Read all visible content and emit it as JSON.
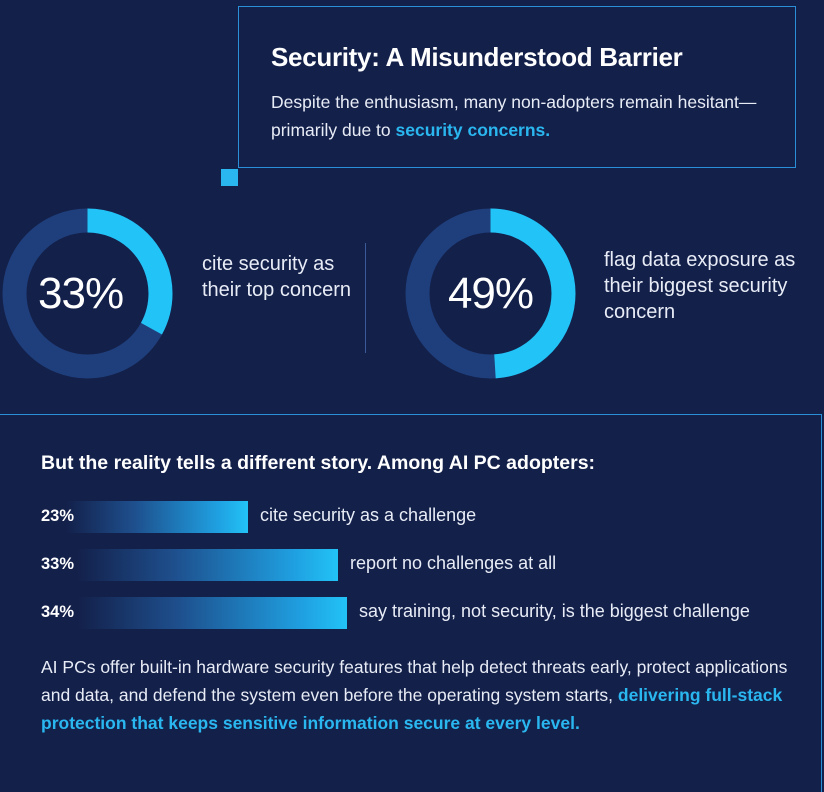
{
  "header": {
    "title": "Security: A Misunderstood Barrier",
    "intro_prefix": "Despite the enthusiasm, many non-adopters remain hesitant—primarily due to ",
    "intro_highlight": "security concerns."
  },
  "donuts": [
    {
      "label": "33%",
      "value": 33,
      "caption": "cite security as their top concern"
    },
    {
      "label": "49%",
      "value": 49,
      "caption": "flag data exposure as their biggest security concern"
    }
  ],
  "adopters": {
    "heading": "But the reality tells a different story. Among AI PC adopters:"
  },
  "chart_data": {
    "type": "bar",
    "categories": [
      "cite security as a challenge",
      "report no challenges at all",
      "say training, not security, is the biggest challenge"
    ],
    "values": [
      23,
      33,
      34
    ],
    "labels": [
      "23%",
      "33%",
      "34%"
    ],
    "xlim": [
      0,
      100
    ]
  },
  "footer": {
    "text": "AI PCs offer built-in hardware security features that help detect threats early, protect applications and data, and defend the system even before the operating system starts, ",
    "highlight": "delivering full-stack protection that keeps sensitive information secure at every level."
  },
  "colors": {
    "background": "#13204a",
    "accent": "#2ab7f0",
    "track": "#1f3f7c"
  }
}
